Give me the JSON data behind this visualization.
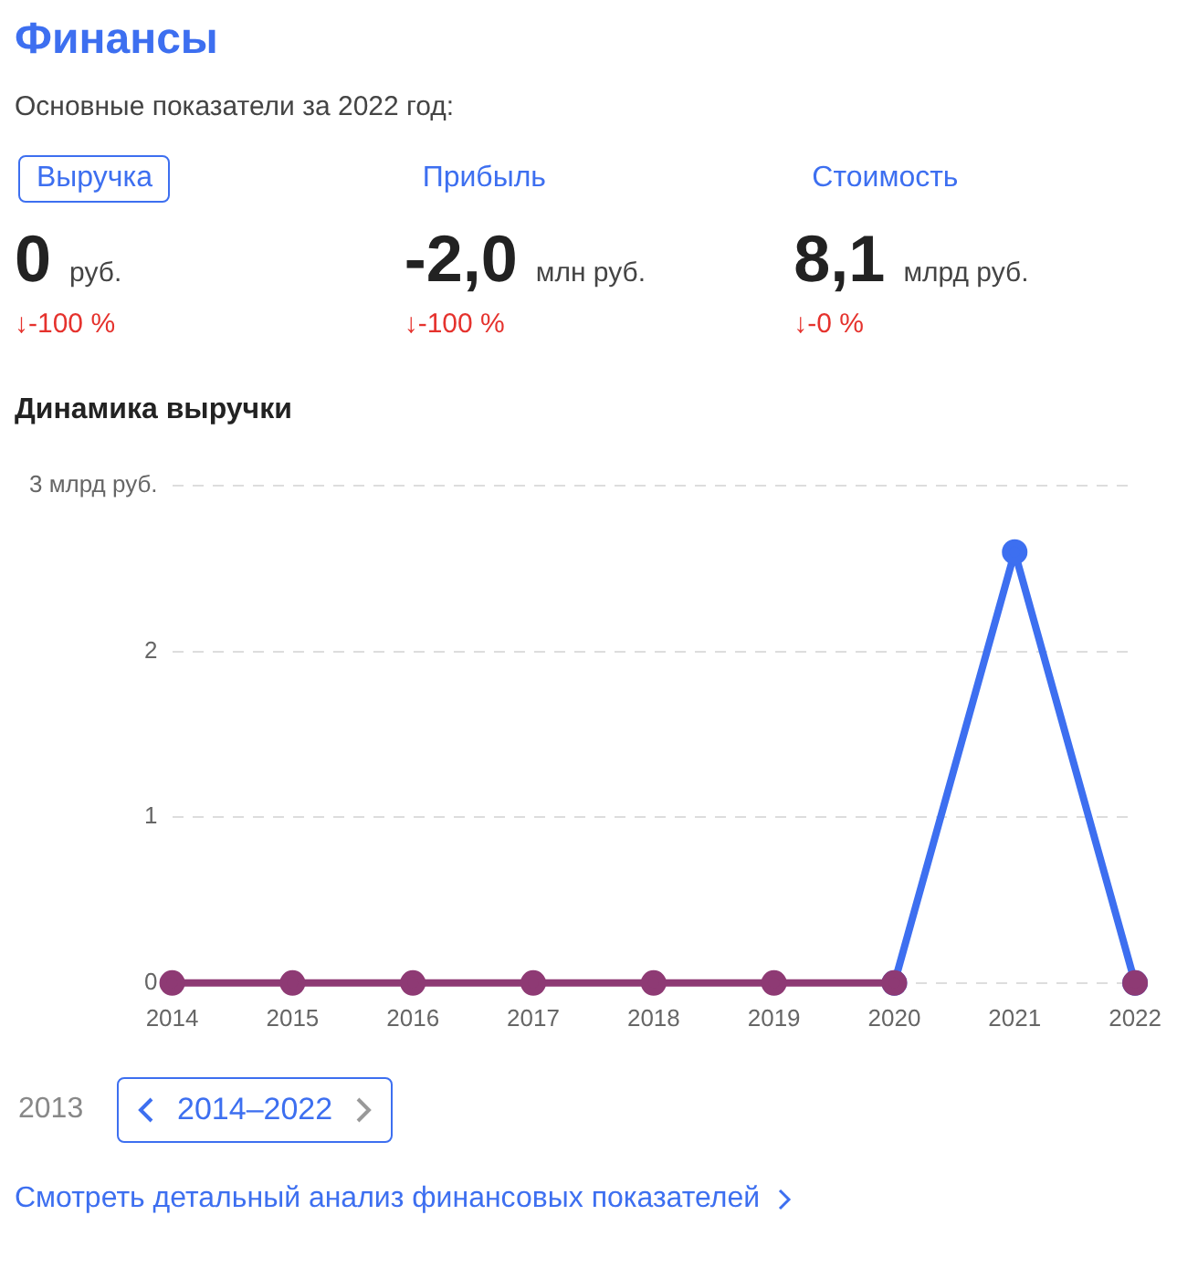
{
  "chart_data": [
    {
      "type": "other",
      "title": "Финансы",
      "subtitle": "Основные показатели за 2022 год:",
      "annotations": [
        "Выручка",
        "0",
        "руб.",
        "↓-100 %",
        "Прибыль",
        "-2,0",
        "млн руб.",
        "↓-100 %",
        "Стоимость",
        "8,1",
        "млрд руб.",
        "↓-0 %"
      ]
    },
    {
      "type": "line",
      "title": "Динамика выручки",
      "categories": [
        "2014",
        "2015",
        "2016",
        "2017",
        "2018",
        "2019",
        "2020",
        "2021",
        "2022"
      ],
      "series": [
        {
          "color": "#8e3a74",
          "values": [
            0,
            0,
            0,
            0,
            0,
            0,
            0,
            null,
            0
          ]
        },
        {
          "color": "#3d6ff0",
          "values": [
            null,
            null,
            null,
            null,
            null,
            null,
            0,
            2.6,
            0
          ]
        }
      ],
      "ylim": [
        0,
        3
      ],
      "yticks": [
        0,
        1,
        2,
        {
          "value": 3,
          "label": "3 млрд руб."
        }
      ],
      "grid": "y",
      "legend": false,
      "marker": "circle",
      "line_style": "solid",
      "annotations": [
        "2013",
        "2014–2022",
        "Смотреть детальный анализ финансовых показателей"
      ]
    }
  ]
}
